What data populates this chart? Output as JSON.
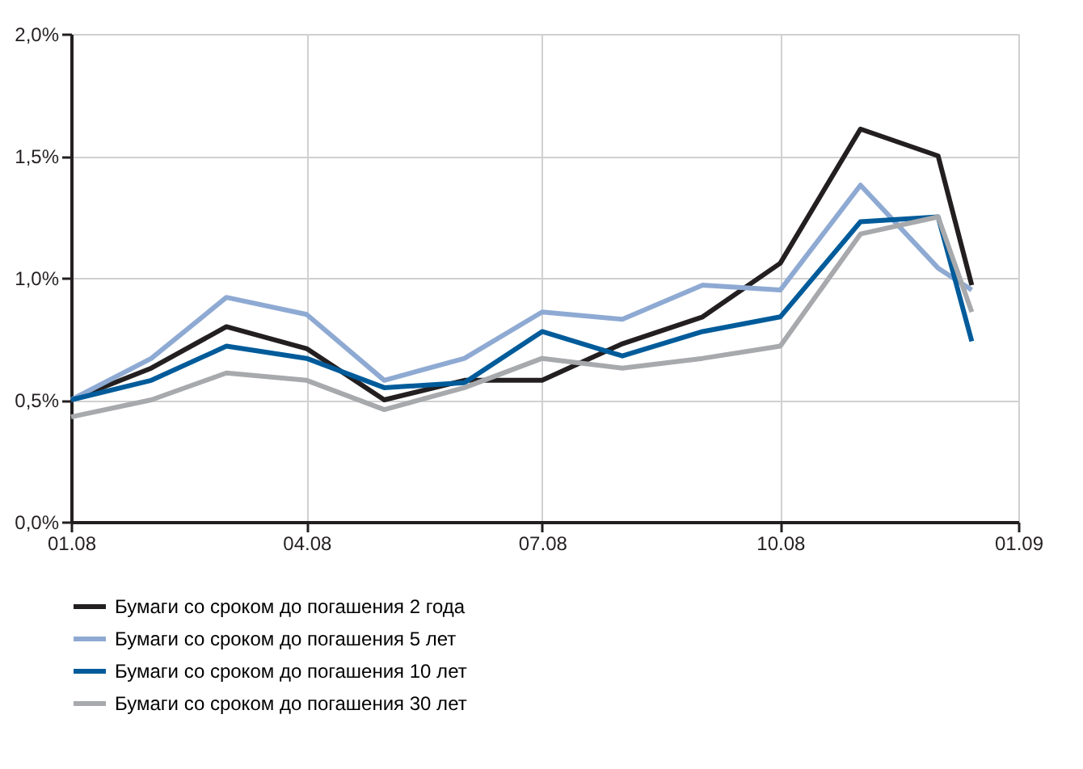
{
  "chart_data": {
    "type": "line",
    "x": [
      "2008-01",
      "2008-02",
      "2008-03",
      "2008-04",
      "2008-05",
      "2008-06",
      "2008-07",
      "2008-08",
      "2008-09",
      "2008-10",
      "2008-11",
      "2008-12",
      "2008-12-14"
    ],
    "series": [
      {
        "name": "Бумаги со сроком до погашения 2 года",
        "color": "#231f20",
        "values": [
          0.5,
          0.63,
          0.8,
          0.71,
          0.5,
          0.58,
          0.58,
          0.73,
          0.84,
          1.06,
          1.61,
          1.5,
          0.97
        ]
      },
      {
        "name": "Бумаги со сроком до погашения 5 лет",
        "color": "#8eaad3",
        "values": [
          0.5,
          0.67,
          0.92,
          0.85,
          0.58,
          0.67,
          0.86,
          0.83,
          0.97,
          0.95,
          1.38,
          1.04,
          0.95
        ]
      },
      {
        "name": "Бумаги со сроком до погашения 10 лет",
        "color": "#005b9a",
        "values": [
          0.5,
          0.58,
          0.72,
          0.67,
          0.55,
          0.57,
          0.78,
          0.68,
          0.78,
          0.84,
          1.23,
          1.25,
          0.74
        ]
      },
      {
        "name": "Бумаги со сроком до погашения 30 лет",
        "color": "#a7a9ac",
        "values": [
          0.43,
          0.5,
          0.61,
          0.58,
          0.46,
          0.55,
          0.67,
          0.63,
          0.67,
          0.72,
          1.18,
          1.25,
          0.86
        ]
      }
    ],
    "xlim": [
      "2008-01",
      "2009-01"
    ],
    "xticks": [
      {
        "value": "2008-01",
        "label": "01.08"
      },
      {
        "value": "2008-04",
        "label": "04.08"
      },
      {
        "value": "2008-07",
        "label": "07.08"
      },
      {
        "value": "2008-10",
        "label": "10.08"
      },
      {
        "value": "2009-01",
        "label": "01.09"
      }
    ],
    "ylim": [
      0,
      2
    ],
    "yticks": [
      {
        "value": 0,
        "label": "0,0%"
      },
      {
        "value": 0.5,
        "label": "0,5%"
      },
      {
        "value": 1,
        "label": "1,0%"
      },
      {
        "value": 1.5,
        "label": "1,5%"
      },
      {
        "value": 2,
        "label": "2,0%"
      }
    ],
    "grid": true,
    "legend": "bottom"
  }
}
